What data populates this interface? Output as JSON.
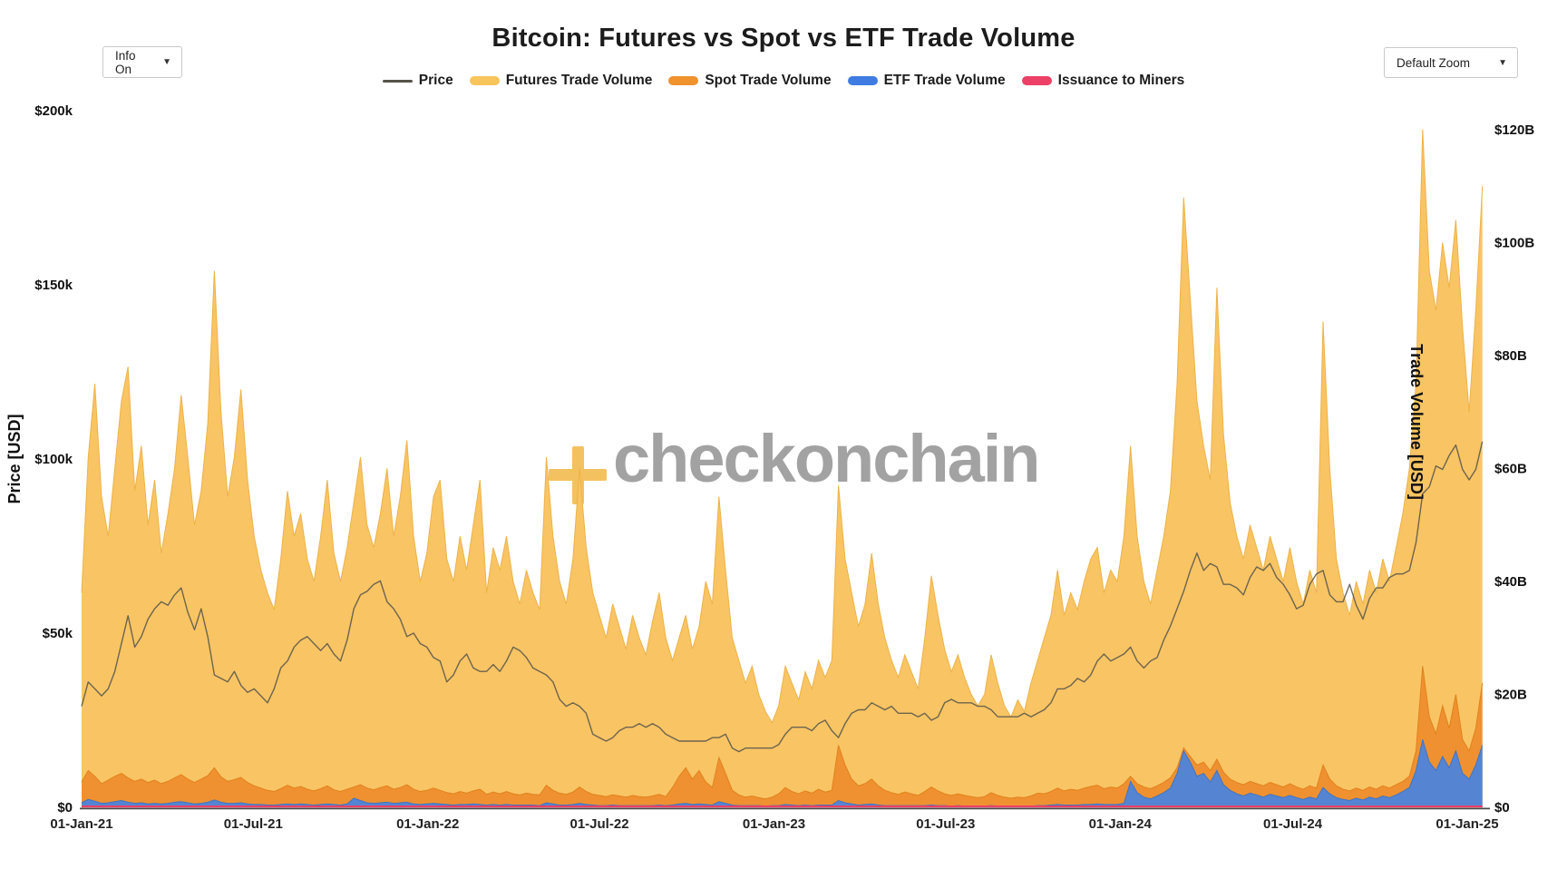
{
  "header": {
    "title": "Bitcoin: Futures vs Spot vs ETF Trade Volume"
  },
  "controls": {
    "info_dropdown": {
      "label": "Info On",
      "caret": "▼"
    },
    "zoom_dropdown": {
      "label": "Default Zoom",
      "caret": "▼"
    }
  },
  "watermark": {
    "text": "checkonchain",
    "plus_color": "#F4BC53"
  },
  "chart_data": {
    "type": "area",
    "title": "Bitcoin: Futures vs Spot vs ETF Trade Volume",
    "grid": "off",
    "legend_position": "top-center",
    "sample_interval_days": 7,
    "x_start_label": "01-Jan-21",
    "x_end_label": "01-Jan-25",
    "x_ticks": [
      {
        "label": "01-Jan-21",
        "day": 0
      },
      {
        "label": "01-Jul-21",
        "day": 181
      },
      {
        "label": "01-Jan-22",
        "day": 365
      },
      {
        "label": "01-Jul-22",
        "day": 546
      },
      {
        "label": "01-Jan-23",
        "day": 730
      },
      {
        "label": "01-Jul-23",
        "day": 911
      },
      {
        "label": "01-Jan-24",
        "day": 1095
      },
      {
        "label": "01-Jul-24",
        "day": 1277
      },
      {
        "label": "01-Jan-25",
        "day": 1461
      }
    ],
    "left_axis": {
      "label": "Price [USD]",
      "unit": "thousand USD",
      "range": [
        0,
        200
      ],
      "ticks": [
        {
          "label": "$0",
          "value": 0
        },
        {
          "label": "$50k",
          "value": 50
        },
        {
          "label": "$100k",
          "value": 100
        },
        {
          "label": "$150k",
          "value": 150
        },
        {
          "label": "$200k",
          "value": 200
        }
      ]
    },
    "right_axis": {
      "label": "Trade Volume [USD]",
      "unit": "billion USD",
      "range": [
        0,
        120
      ],
      "ticks": [
        {
          "label": "$0",
          "value": 0
        },
        {
          "label": "$20B",
          "value": 20
        },
        {
          "label": "$40B",
          "value": 40
        },
        {
          "label": "$60B",
          "value": 60
        },
        {
          "label": "$80B",
          "value": 80
        },
        {
          "label": "$100B",
          "value": 100
        },
        {
          "label": "$120B",
          "value": 120
        }
      ]
    },
    "series": [
      {
        "name": "Price",
        "axis": "left",
        "kind": "line",
        "color": "#55534a",
        "line_opacity": 0.85,
        "values_kusd": [
          29,
          36,
          34,
          32,
          34,
          39,
          47,
          55,
          46,
          49,
          54,
          57,
          59,
          58,
          61,
          63,
          56,
          51,
          57,
          49,
          38,
          37,
          36,
          39,
          35,
          33,
          34,
          32,
          30,
          34,
          40,
          42,
          46,
          48,
          49,
          47,
          45,
          47,
          44,
          42,
          48,
          57,
          61,
          62,
          64,
          65,
          59,
          57,
          54,
          49,
          50,
          47,
          46,
          43,
          42,
          36,
          38,
          42,
          44,
          40,
          39,
          39,
          41,
          39,
          42,
          46,
          45,
          43,
          40,
          39,
          38,
          36,
          31,
          29,
          30,
          29,
          27,
          21,
          20,
          19,
          20,
          22,
          23,
          23,
          24,
          23,
          24,
          23,
          21,
          20,
          19,
          19,
          19,
          19,
          19,
          20,
          20,
          21,
          17,
          16,
          17,
          17,
          17,
          17,
          17,
          18,
          21,
          23,
          23,
          23,
          22,
          24,
          25,
          22,
          20,
          24,
          27,
          28,
          28,
          30,
          29,
          28,
          29,
          27,
          27,
          27,
          26,
          27,
          25,
          26,
          30,
          31,
          30,
          30,
          30,
          29,
          29,
          28,
          26,
          26,
          26,
          26,
          27,
          26,
          27,
          28,
          30,
          34,
          34,
          35,
          37,
          36,
          38,
          42,
          44,
          42,
          43,
          44,
          46,
          42,
          40,
          42,
          43,
          48,
          52,
          57,
          62,
          68,
          73,
          68,
          70,
          69,
          64,
          64,
          63,
          61,
          66,
          69,
          68,
          70,
          66,
          64,
          61,
          57,
          58,
          64,
          67,
          68,
          61,
          59,
          59,
          64,
          58,
          54,
          60,
          63,
          63,
          66,
          67,
          67,
          68,
          76,
          90,
          92,
          98,
          97,
          101,
          104,
          97,
          94,
          97,
          105
        ]
      },
      {
        "name": "Futures Trade Volume",
        "axis": "right",
        "kind": "area",
        "color": "#F8C55C",
        "fill": "#F9C464",
        "edge": "#EDB347",
        "values_busd": [
          38,
          62,
          75,
          55,
          48,
          60,
          72,
          78,
          56,
          64,
          50,
          58,
          45,
          52,
          60,
          73,
          62,
          50,
          56,
          68,
          95,
          70,
          55,
          62,
          74,
          58,
          48,
          42,
          38,
          35,
          44,
          56,
          48,
          52,
          44,
          40,
          48,
          58,
          45,
          40,
          46,
          54,
          62,
          50,
          46,
          52,
          60,
          48,
          55,
          65,
          48,
          40,
          45,
          55,
          58,
          44,
          40,
          48,
          42,
          50,
          58,
          38,
          46,
          42,
          48,
          40,
          36,
          42,
          38,
          35,
          62,
          48,
          40,
          36,
          44,
          60,
          46,
          38,
          34,
          30,
          36,
          32,
          28,
          34,
          30,
          27,
          33,
          38,
          30,
          26,
          30,
          34,
          28,
          32,
          40,
          36,
          55,
          42,
          30,
          26,
          22,
          25,
          20,
          17,
          15,
          18,
          25,
          22,
          19,
          24,
          21,
          26,
          23,
          26,
          57,
          44,
          38,
          32,
          36,
          45,
          36,
          30,
          26,
          23,
          27,
          24,
          21,
          30,
          41,
          34,
          28,
          24,
          27,
          23,
          20,
          18,
          20,
          27,
          22,
          18,
          16,
          19,
          17,
          22,
          26,
          30,
          34,
          42,
          34,
          38,
          35,
          40,
          44,
          46,
          38,
          42,
          40,
          48,
          64,
          48,
          40,
          36,
          42,
          48,
          56,
          75,
          108,
          90,
          72,
          64,
          58,
          92,
          66,
          54,
          48,
          44,
          50,
          46,
          42,
          48,
          44,
          40,
          46,
          40,
          36,
          42,
          38,
          86,
          60,
          44,
          38,
          34,
          40,
          36,
          42,
          38,
          44,
          40,
          46,
          52,
          60,
          75,
          120,
          95,
          88,
          100,
          92,
          104,
          85,
          70,
          88,
          110
        ]
      },
      {
        "name": "Spot Trade Volume",
        "axis": "right",
        "kind": "area",
        "color": "#F0922D",
        "fill": "#EF9130",
        "edge": "#E0821D",
        "values_busd": [
          4.5,
          6.5,
          5.5,
          4.2,
          4.8,
          5.5,
          6,
          5.2,
          4.6,
          5,
          4.4,
          4.8,
          4.2,
          4.6,
          5.2,
          5.8,
          5,
          4.4,
          5,
          5.6,
          7,
          5.4,
          4.6,
          4.9,
          5.3,
          4.4,
          3.8,
          3.4,
          3,
          2.8,
          3.3,
          3.9,
          3.4,
          3.7,
          3.2,
          2.9,
          3.3,
          3.8,
          3.1,
          2.8,
          3.2,
          3.6,
          4,
          3.4,
          3.1,
          3.5,
          3.8,
          3.2,
          3.5,
          4,
          3.2,
          2.8,
          3,
          3.4,
          3,
          2.6,
          2.4,
          2.8,
          2.5,
          2.9,
          3.2,
          2.3,
          2.7,
          2.4,
          2.8,
          2.4,
          2.2,
          2.5,
          2.3,
          2.2,
          3.9,
          3,
          2.5,
          2.3,
          2.7,
          3.6,
          2.8,
          2.3,
          2.1,
          1.9,
          2.2,
          2,
          1.8,
          2.1,
          1.9,
          1.8,
          2,
          2.3,
          1.9,
          3.5,
          5.5,
          7,
          5,
          6.5,
          4.5,
          3.5,
          8.8,
          6,
          3,
          2.2,
          1.8,
          2,
          1.7,
          1.5,
          1.8,
          2.4,
          3.5,
          2.8,
          2.4,
          2.9,
          2.5,
          3.2,
          2.7,
          3,
          11,
          7.5,
          5,
          3.8,
          4.2,
          5,
          3.8,
          3,
          2.6,
          2.3,
          2.7,
          2.4,
          2.1,
          2.8,
          3.6,
          2.9,
          2.4,
          2.1,
          2.4,
          2.1,
          1.9,
          1.7,
          1.9,
          2.6,
          2.1,
          1.8,
          1.6,
          1.8,
          1.7,
          2,
          2.5,
          2.4,
          2.8,
          3.4,
          2.9,
          3.2,
          3,
          3.4,
          3.7,
          3.9,
          3.3,
          3.6,
          3.4,
          4.2,
          5.5,
          4.2,
          3.6,
          3.3,
          3.8,
          4.4,
          5.2,
          7,
          10.5,
          9,
          7.5,
          8,
          6.5,
          8.5,
          6.2,
          5,
          4.4,
          4,
          4.6,
          4.2,
          3.8,
          4.4,
          4,
          3.6,
          4.2,
          3.6,
          3.2,
          3.8,
          3.4,
          7.5,
          5,
          3.8,
          3.2,
          2.9,
          3.4,
          3,
          3.6,
          3.2,
          3.8,
          3.4,
          4,
          4.6,
          5.5,
          10,
          25,
          16,
          13,
          18,
          14,
          20,
          12,
          10,
          14,
          22
        ]
      },
      {
        "name": "ETF Trade Volume",
        "axis": "right",
        "kind": "area",
        "color": "#3E7CE1",
        "fill": "#5585D2",
        "edge": "#4173C2",
        "values_busd": [
          0.8,
          1.4,
          1.1,
          0.7,
          0.8,
          1,
          1.2,
          0.9,
          0.7,
          0.8,
          0.6,
          0.7,
          0.6,
          0.7,
          0.9,
          1,
          0.8,
          0.6,
          0.7,
          0.9,
          1.3,
          0.9,
          0.7,
          0.7,
          0.8,
          0.6,
          0.5,
          0.5,
          0.4,
          0.4,
          0.5,
          0.6,
          0.5,
          0.6,
          0.5,
          0.4,
          0.5,
          0.6,
          0.5,
          0.4,
          0.6,
          1.6,
          1.2,
          0.8,
          0.7,
          0.8,
          0.9,
          0.7,
          0.8,
          0.9,
          0.6,
          0.5,
          0.6,
          0.7,
          0.6,
          0.5,
          0.4,
          0.5,
          0.5,
          0.6,
          0.5,
          0.4,
          0.5,
          0.4,
          0.5,
          0.4,
          0.4,
          0.4,
          0.4,
          0.3,
          0.8,
          0.6,
          0.4,
          0.4,
          0.5,
          0.7,
          0.5,
          0.4,
          0.3,
          0.3,
          0.4,
          0.3,
          0.3,
          0.3,
          0.3,
          0.3,
          0.3,
          0.4,
          0.3,
          0.4,
          0.6,
          0.7,
          0.5,
          0.6,
          0.5,
          0.4,
          1,
          0.7,
          0.4,
          0.3,
          0.3,
          0.3,
          0.3,
          0.2,
          0.3,
          0.3,
          0.5,
          0.4,
          0.3,
          0.4,
          0.3,
          0.4,
          0.4,
          0.4,
          1.2,
          0.8,
          0.6,
          0.4,
          0.5,
          0.6,
          0.4,
          0.3,
          0.3,
          0.3,
          0.3,
          0.3,
          0.3,
          0.3,
          0.4,
          0.3,
          0.3,
          0.2,
          0.3,
          0.2,
          0.2,
          0.2,
          0.2,
          0.3,
          0.2,
          0.2,
          0.2,
          0.2,
          0.2,
          0.2,
          0.3,
          0.3,
          0.4,
          0.5,
          0.4,
          0.4,
          0.4,
          0.5,
          0.5,
          0.6,
          0.5,
          0.5,
          0.5,
          0.7,
          4.6,
          2.6,
          1.8,
          1.5,
          2,
          2.6,
          3.4,
          6,
          10,
          8,
          5.5,
          6,
          4.5,
          6.5,
          4,
          3,
          2.4,
          2,
          2.5,
          2.2,
          1.8,
          2.3,
          2,
          1.7,
          2.1,
          1.7,
          1.4,
          1.8,
          1.5,
          3.5,
          2.4,
          1.7,
          1.4,
          1.2,
          1.6,
          1.3,
          1.8,
          1.5,
          2,
          1.7,
          2.2,
          2.8,
          3.5,
          6.5,
          12,
          8,
          6.5,
          9,
          7,
          10,
          6,
          5,
          7.5,
          11
        ]
      },
      {
        "name": "Issuance to Miners",
        "axis": "right",
        "kind": "line",
        "color": "#EC4067",
        "constant_busd": 0.05
      }
    ]
  }
}
